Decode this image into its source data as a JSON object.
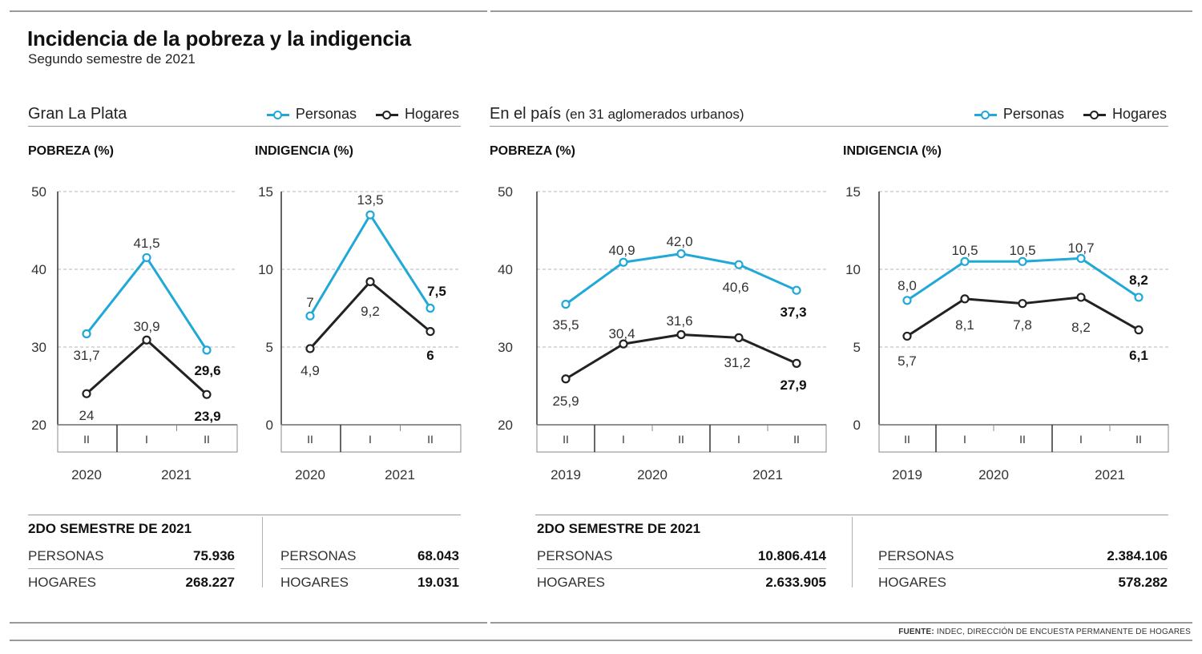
{
  "title": "Incidencia de la pobreza y la indigencia",
  "subtitle": "Segundo semestre de 2021",
  "colors": {
    "personas": "#20a8d8",
    "hogares": "#222222",
    "grid": "#b4b4b4",
    "axis": "#333333"
  },
  "regions": [
    {
      "title": "Gran La Plata",
      "note": "",
      "legend": {
        "personas": "Personas",
        "hogares": "Hogares"
      }
    },
    {
      "title": "En el país",
      "note": "(en 31 aglomerados urbanos)",
      "legend": {
        "personas": "Personas",
        "hogares": "Hogares"
      }
    }
  ],
  "chart_data": [
    {
      "type": "line",
      "region": "Gran La Plata",
      "title": "POBREZA (%)",
      "semesters": [
        "II",
        "I",
        "II"
      ],
      "years": [
        "2020",
        "2021"
      ],
      "ylim": [
        20,
        50
      ],
      "yticks": [
        20,
        30,
        40,
        50
      ],
      "grid": true,
      "series": [
        {
          "name": "Personas",
          "values": [
            31.7,
            41.5,
            29.6
          ],
          "labels": [
            "31,7",
            "41,5",
            "29,6"
          ]
        },
        {
          "name": "Hogares",
          "values": [
            24,
            30.9,
            23.9
          ],
          "labels": [
            "24",
            "30,9",
            "23,9"
          ]
        }
      ]
    },
    {
      "type": "line",
      "region": "Gran La Plata",
      "title": "INDIGENCIA (%)",
      "semesters": [
        "II",
        "I",
        "II"
      ],
      "years": [
        "2020",
        "2021"
      ],
      "ylim": [
        0,
        15
      ],
      "yticks": [
        0,
        5,
        10,
        15
      ],
      "grid": true,
      "series": [
        {
          "name": "Personas",
          "values": [
            7,
            13.5,
            7.5
          ],
          "labels": [
            "7",
            "13,5",
            "7,5"
          ]
        },
        {
          "name": "Hogares",
          "values": [
            4.9,
            9.2,
            6
          ],
          "labels": [
            "4,9",
            "9,2",
            "6"
          ]
        }
      ]
    },
    {
      "type": "line",
      "region": "En el país",
      "title": "POBREZA (%)",
      "semesters": [
        "II",
        "I",
        "II",
        "I",
        "II"
      ],
      "years": [
        "2019",
        "2020",
        "2021"
      ],
      "ylim": [
        20,
        50
      ],
      "yticks": [
        20,
        30,
        40,
        50
      ],
      "grid": true,
      "series": [
        {
          "name": "Personas",
          "values": [
            35.5,
            40.9,
            42.0,
            40.6,
            37.3
          ],
          "labels": [
            "35,5",
            "40,9",
            "42,0",
            "40,6",
            "37,3"
          ]
        },
        {
          "name": "Hogares",
          "values": [
            25.9,
            30.4,
            31.6,
            31.2,
            27.9
          ],
          "labels": [
            "25,9",
            "30,4",
            "31,6",
            "31,2",
            "27,9"
          ]
        }
      ]
    },
    {
      "type": "line",
      "region": "En el país",
      "title": "INDIGENCIA (%)",
      "semesters": [
        "II",
        "I",
        "II",
        "I",
        "II"
      ],
      "years": [
        "2019",
        "2020",
        "2021"
      ],
      "ylim": [
        0,
        15
      ],
      "yticks": [
        0,
        5,
        10,
        15
      ],
      "grid": true,
      "series": [
        {
          "name": "Personas",
          "values": [
            8.0,
            10.5,
            10.5,
            10.7,
            8.2
          ],
          "labels": [
            "8,0",
            "10,5",
            "10,5",
            "10,7",
            "8,2"
          ]
        },
        {
          "name": "Hogares",
          "values": [
            5.7,
            8.1,
            7.8,
            8.2,
            6.1
          ],
          "labels": [
            "5,7",
            "8,1",
            "7,8",
            "8,2",
            "6,1"
          ]
        }
      ]
    }
  ],
  "tables": {
    "gran_la_plata": {
      "heading": "2DO SEMESTRE DE 2021",
      "pobreza": {
        "personas_label": "PERSONAS",
        "personas": "75.936",
        "hogares_label": "HOGARES",
        "hogares": "268.227"
      },
      "indigencia": {
        "personas_label": "PERSONAS",
        "personas": "68.043",
        "hogares_label": "HOGARES",
        "hogares": "19.031"
      }
    },
    "pais": {
      "heading": "2DO SEMESTRE DE 2021",
      "pobreza": {
        "personas_label": "PERSONAS",
        "personas": "10.806.414",
        "hogares_label": "HOGARES",
        "hogares": "2.633.905"
      },
      "indigencia": {
        "personas_label": "PERSONAS",
        "personas": "2.384.106",
        "hogares_label": "HOGARES",
        "hogares": "578.282"
      }
    }
  },
  "source": {
    "label": "FUENTE:",
    "text": "INDEC, DIRECCIÓN DE ENCUESTA PERMANENTE DE HOGARES"
  }
}
